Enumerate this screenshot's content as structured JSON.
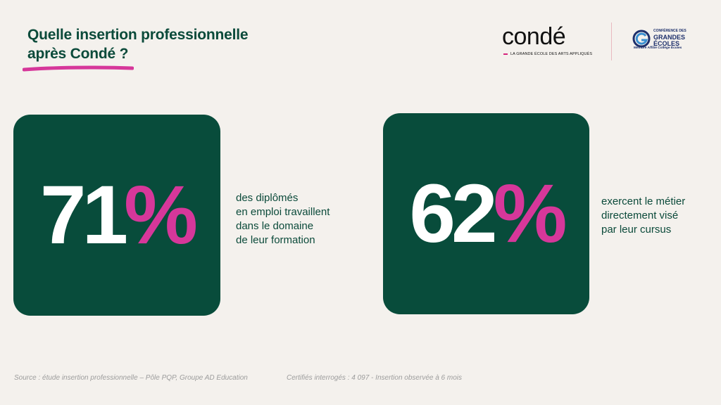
{
  "title": {
    "line1": "Quelle insertion professionnelle",
    "line2": "après Condé ?"
  },
  "logos": {
    "conde_word": "condé",
    "conde_tagline": "LA GRANDE ÉCOLE DES ARTS APPLIQUÉS",
    "cge_line1": "CONFÉRENCE DES",
    "cge_line2": "GRANDES",
    "cge_line3": "ÉCOLES",
    "cge_member": "Membre Affilié Collège Écoles"
  },
  "stats": [
    {
      "number": "71",
      "percent": "%",
      "description": [
        "des diplômés",
        "en emploi travaillent",
        "dans le domaine",
        "de leur formation"
      ]
    },
    {
      "number": "62",
      "percent": "%",
      "description": [
        "exercent le métier",
        "directement visé",
        "par leur cursus"
      ]
    }
  ],
  "footnotes": {
    "source": "Source : étude insertion professionnelle – Pôle PQP, Groupe AD Education",
    "sample": "Certifiés interrogés : 4 097 - Insertion observée à 6 mois"
  },
  "colors": {
    "background": "#f4f1ed",
    "brand_green": "#084c3b",
    "accent_pink": "#d6379a",
    "cge_blue": "#1d2f6b"
  }
}
